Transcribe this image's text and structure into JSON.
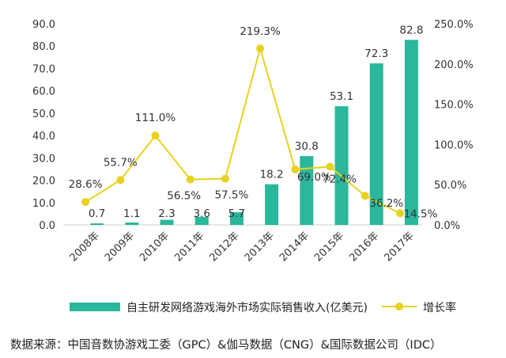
{
  "chart_data": {
    "type": "bar",
    "categories": [
      "2008年",
      "2009年",
      "2010年",
      "2011年",
      "2012年",
      "2013年",
      "2014年",
      "2015年",
      "2016年",
      "2017年"
    ],
    "series": [
      {
        "name": "自主研发网络游戏海外市场实际销售收入(亿美元)",
        "type": "bar",
        "axis": "left",
        "color": "#2bb79c",
        "values": [
          0.7,
          1.1,
          2.3,
          3.6,
          5.7,
          18.2,
          30.8,
          53.1,
          72.3,
          82.8
        ],
        "labels": [
          "0.7",
          "1.1",
          "2.3",
          "3.6",
          "5.7",
          "18.2",
          "30.8",
          "53.1",
          "72.3",
          "82.8"
        ]
      },
      {
        "name": "增长率",
        "type": "line",
        "axis": "right",
        "color": "#e8d21f",
        "values": [
          28.6,
          55.7,
          111.0,
          56.5,
          57.5,
          219.3,
          69.0,
          72.4,
          36.2,
          14.5
        ],
        "labels": [
          "28.6%",
          "55.7%",
          "111.0%",
          "56.5%",
          "57.5%",
          "219.3%",
          "69.0%",
          "72.4%",
          "36.2%",
          "14.5%"
        ]
      }
    ],
    "left_axis": {
      "ylim": [
        0,
        90
      ],
      "ticks": [
        "0.0",
        "10.0",
        "20.0",
        "30.0",
        "40.0",
        "50.0",
        "60.0",
        "70.0",
        "80.0",
        "90.0"
      ]
    },
    "right_axis": {
      "ylim": [
        0,
        250
      ],
      "ticks": [
        "0.0%",
        "50.0%",
        "100.0%",
        "150.0%",
        "200.0%",
        "250.0%"
      ]
    },
    "legend_position": "bottom",
    "grid": false
  },
  "source": "数据来源：中国音数协游戏工委（GPC）&伽马数据（CNG）&国际数据公司（IDC）"
}
